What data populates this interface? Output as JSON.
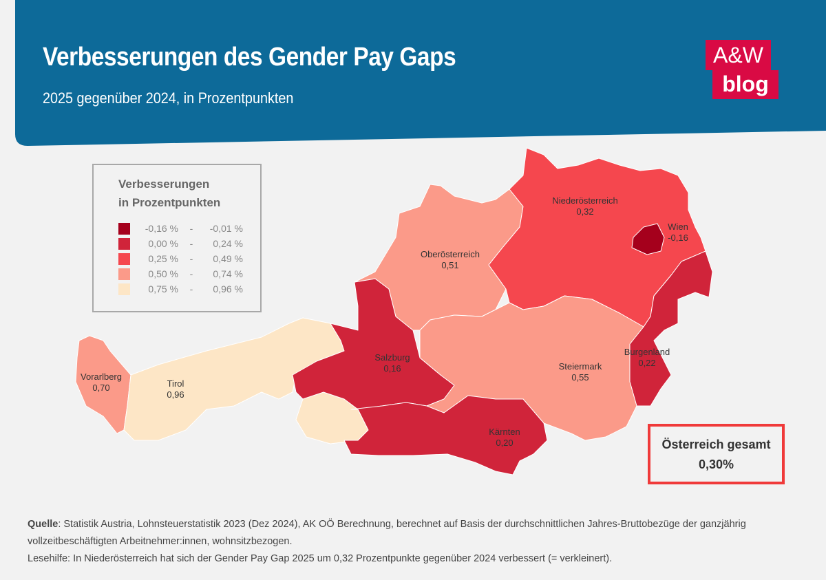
{
  "header": {
    "title": "Verbesserungen des Gender Pay Gaps",
    "subtitle": "2025 gegenüber 2024, in Prozentpunkten",
    "background_color": "#0d6a99"
  },
  "logo": {
    "line1": "A&W",
    "line2": "blog",
    "color": "#d90a44"
  },
  "legend": {
    "title_line1": "Verbesserungen",
    "title_line2": "in Prozentpunkten",
    "classes": [
      {
        "low": "-0,16 %",
        "high": "-0,01 %",
        "color": "#a5001c"
      },
      {
        "low": "0,00 %",
        "high": "0,24 %",
        "color": "#d0243a"
      },
      {
        "low": "0,25 %",
        "high": "0,49 %",
        "color": "#f5474e"
      },
      {
        "low": "0,50 %",
        "high": "0,74 %",
        "color": "#fb9a89"
      },
      {
        "low": "0,75 %",
        "high": "0,96 %",
        "color": "#fde6c6"
      }
    ]
  },
  "map": {
    "regions": [
      {
        "name": "Vorarlberg",
        "value": "0,70",
        "color": "#fb9a89"
      },
      {
        "name": "Tirol",
        "value": "0,96",
        "color": "#fde6c6"
      },
      {
        "name": "Salzburg",
        "value": "0,16",
        "color": "#d0243a"
      },
      {
        "name": "Oberösterreich",
        "value": "0,51",
        "color": "#fb9a89"
      },
      {
        "name": "Niederösterreich",
        "value": "0,32",
        "color": "#f5474e"
      },
      {
        "name": "Wien",
        "value": "-0,16",
        "color": "#a5001c"
      },
      {
        "name": "Burgenland",
        "value": "0,22",
        "color": "#d0243a"
      },
      {
        "name": "Steiermark",
        "value": "0,55",
        "color": "#fb9a89"
      },
      {
        "name": "Kärnten",
        "value": "0,20",
        "color": "#d0243a"
      }
    ],
    "total_label": "Österreich gesamt",
    "total_value": "0,30%"
  },
  "footer": {
    "source_label": "Quelle",
    "source_text": ": Statistik Austria, Lohnsteuerstatistik 2023 (Dez 2024), AK OÖ Berechnung, berechnet auf Basis der durchschnittlichen Jahres-Bruttobezüge der ganzjährig vollzeitbeschäftigten Arbeitnehmer:innen, wohnsitzbezogen.",
    "reading_help": "Lesehilfe: In Niederösterreich hat sich der Gender Pay Gap 2025 um 0,32 Prozentpunkte gegenüber 2024 verbessert (= verkleinert)."
  }
}
